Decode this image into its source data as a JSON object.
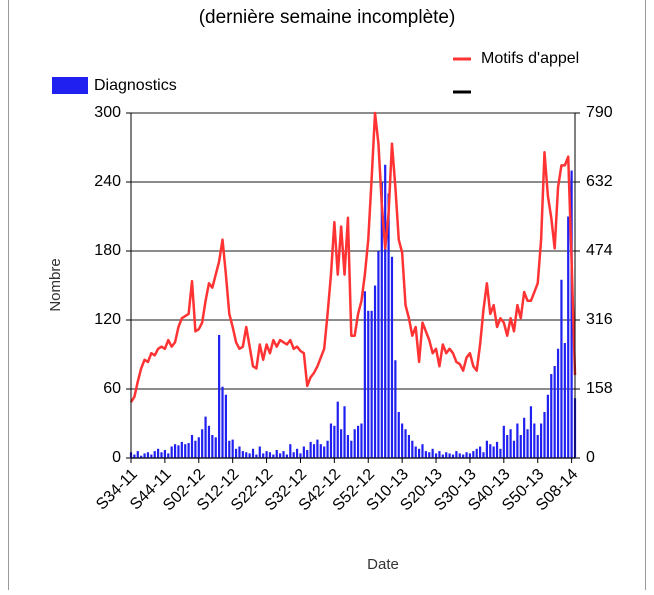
{
  "chart_data": {
    "type": "bar-line",
    "title": "(dernière semaine incomplète)",
    "x_label": "Date",
    "y_label": "Nombre",
    "categories": [
      "S34-11",
      null,
      null,
      null,
      null,
      null,
      null,
      null,
      null,
      null,
      "S44-11",
      null,
      null,
      null,
      null,
      null,
      null,
      null,
      null,
      null,
      "S02-12",
      null,
      null,
      null,
      null,
      null,
      null,
      null,
      null,
      null,
      "S12-12",
      null,
      null,
      null,
      null,
      null,
      null,
      null,
      null,
      null,
      "S22-12",
      null,
      null,
      null,
      null,
      null,
      null,
      null,
      null,
      null,
      "S32-12",
      null,
      null,
      null,
      null,
      null,
      null,
      null,
      null,
      null,
      "S42-12",
      null,
      null,
      null,
      null,
      null,
      null,
      null,
      null,
      null,
      "S52-12",
      null,
      null,
      null,
      null,
      null,
      null,
      null,
      null,
      null,
      "S10-13",
      null,
      null,
      null,
      null,
      null,
      null,
      null,
      null,
      null,
      "S20-13",
      null,
      null,
      null,
      null,
      null,
      null,
      null,
      null,
      null,
      "S30-13",
      null,
      null,
      null,
      null,
      null,
      null,
      null,
      null,
      null,
      "S40-13",
      null,
      null,
      null,
      null,
      null,
      null,
      null,
      null,
      null,
      "S50-13",
      null,
      null,
      null,
      null,
      null,
      null,
      null,
      null,
      null,
      "S08-14",
      null
    ],
    "series": [
      {
        "name": "Diagnostics",
        "color": "#2020f0",
        "values": [
          5,
          3,
          6,
          2,
          4,
          5,
          3,
          6,
          8,
          5,
          7,
          4,
          10,
          12,
          11,
          14,
          12,
          13,
          20,
          15,
          18,
          25,
          36,
          28,
          20,
          18,
          107,
          62,
          55,
          15,
          16,
          8,
          10,
          6,
          5,
          4,
          8,
          3,
          10,
          4,
          6,
          5,
          3,
          7,
          4,
          6,
          3,
          12,
          5,
          8,
          4,
          10,
          7,
          14,
          12,
          16,
          12,
          10,
          15,
          30,
          28,
          49,
          25,
          45,
          20,
          15,
          25,
          28,
          30,
          145,
          128,
          128,
          150,
          180,
          240,
          255,
          230,
          175,
          85,
          40,
          30,
          25,
          20,
          15,
          10,
          8,
          12,
          6,
          5,
          8,
          4,
          6,
          3,
          5,
          4,
          3,
          6,
          4,
          3,
          5,
          4,
          6,
          8,
          10,
          5,
          15,
          12,
          10,
          14,
          8,
          28,
          20,
          25,
          15,
          30,
          20,
          35,
          25,
          45,
          30,
          20,
          30,
          40,
          55,
          73,
          80,
          95,
          155,
          100,
          210,
          250,
          52
        ]
      },
      {
        "name": "Motifs d'appel",
        "color": "#ff3333",
        "axis": "y2",
        "values": [
          128,
          140,
          175,
          205,
          225,
          220,
          240,
          235,
          250,
          255,
          250,
          270,
          255,
          265,
          300,
          320,
          325,
          330,
          405,
          290,
          295,
          310,
          360,
          400,
          390,
          420,
          450,
          500,
          420,
          330,
          300,
          265,
          250,
          255,
          300,
          255,
          210,
          205,
          260,
          225,
          260,
          240,
          270,
          255,
          270,
          265,
          260,
          270,
          250,
          255,
          245,
          240,
          165,
          185,
          195,
          210,
          230,
          250,
          330,
          420,
          540,
          420,
          530,
          420,
          550,
          280,
          280,
          330,
          360,
          420,
          500,
          640,
          790,
          720,
          580,
          480,
          560,
          720,
          620,
          500,
          470,
          350,
          320,
          280,
          300,
          220,
          310,
          290,
          270,
          240,
          250,
          210,
          260,
          240,
          250,
          240,
          220,
          215,
          200,
          230,
          240,
          210,
          200,
          260,
          340,
          400,
          330,
          350,
          300,
          320,
          310,
          280,
          320,
          290,
          350,
          320,
          380,
          360,
          360,
          380,
          400,
          500,
          700,
          600,
          550,
          480,
          620,
          670,
          670,
          690,
          450,
          190
        ]
      }
    ],
    "ylim": [
      0,
      300
    ],
    "yticks": [
      0,
      60,
      120,
      180,
      240,
      300
    ],
    "y2lim": [
      0,
      790
    ],
    "y2ticks": [
      0,
      158,
      316,
      474,
      632,
      790
    ],
    "grid": true
  }
}
